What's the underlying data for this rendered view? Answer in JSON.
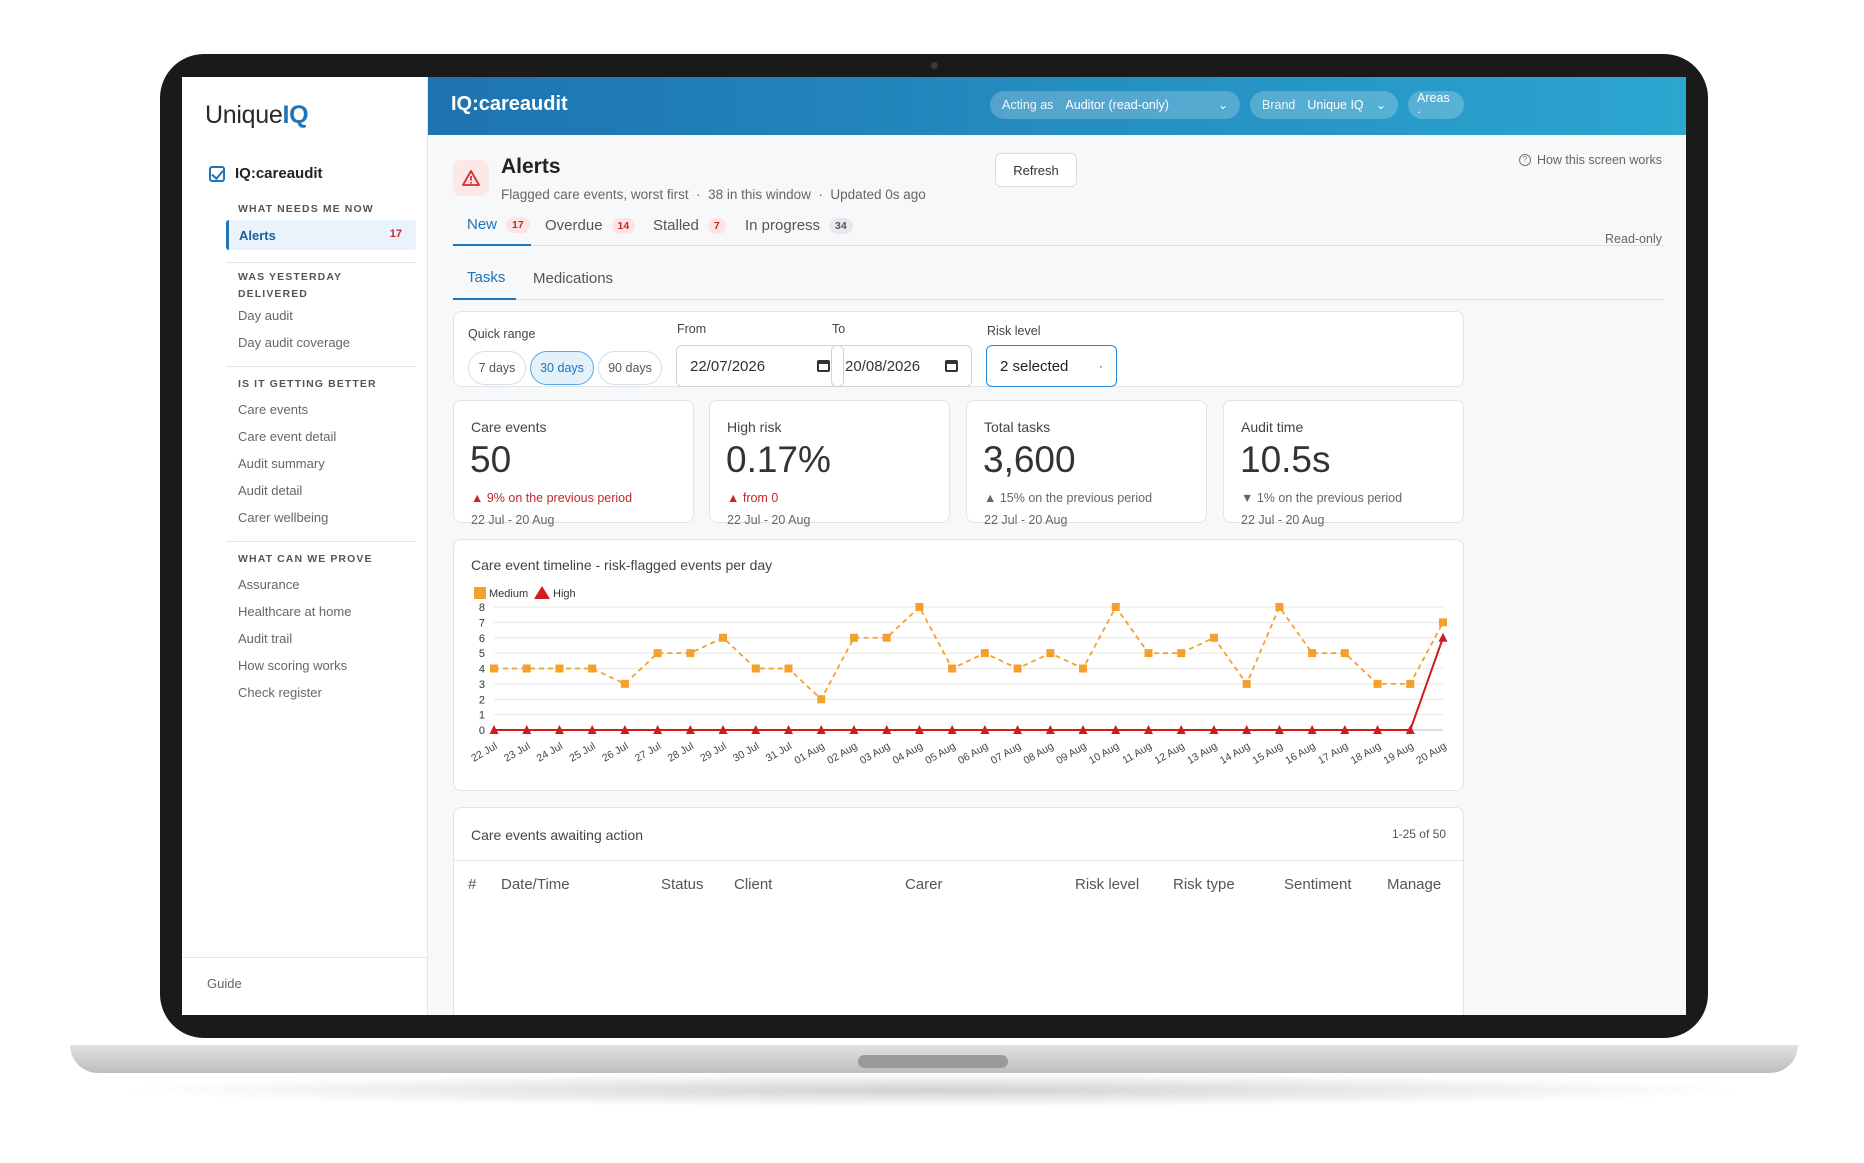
{
  "brand": {
    "logo_prefix": "Unique",
    "logo_suffix": "IQ"
  },
  "sidebar": {
    "app_name": "IQ:careaudit",
    "sections": {
      "now": "WHAT NEEDS ME NOW",
      "yesterday_1": "WAS YESTERDAY",
      "yesterday_2": "DELIVERED",
      "better": "IS IT GETTING BETTER",
      "prove": "WHAT CAN WE PROVE"
    },
    "active": {
      "label": "Alerts",
      "count": "17"
    },
    "items": {
      "day_audit": "Day audit",
      "day_audit_coverage": "Day audit coverage",
      "care_events": "Care events",
      "care_event_detail": "Care event detail",
      "audit_summary": "Audit summary",
      "audit_detail": "Audit detail",
      "carer_wellbeing": "Carer wellbeing",
      "assurance": "Assurance",
      "healthcare_at_home": "Healthcare at home",
      "audit_trail": "Audit trail",
      "how_scoring_works": "How scoring works",
      "check_register": "Check register"
    },
    "guide": "Guide"
  },
  "topbar": {
    "title": "IQ:careaudit",
    "acting_as_key": "Acting as",
    "acting_as_value": "Auditor (read-only)",
    "brand_key": "Brand",
    "brand_value": "Unique IQ",
    "areas": "Areas ·"
  },
  "header": {
    "title": "Alerts",
    "subtitle": "Flagged care events, worst first",
    "window_count": "38 in this window",
    "updated": "Updated 0s ago",
    "refresh": "Refresh",
    "how_this_works": "How this screen works",
    "read_only": "Read-only"
  },
  "tabs": [
    {
      "label": "New",
      "count": "17"
    },
    {
      "label": "Overdue",
      "count": "14"
    },
    {
      "label": "Stalled",
      "count": "7"
    },
    {
      "label": "In progress",
      "count": "34"
    }
  ],
  "subtabs": [
    "Tasks",
    "Medications"
  ],
  "filters": {
    "quick_range_label": "Quick range",
    "ranges": [
      "7 days",
      "30 days",
      "90 days"
    ],
    "selected_range": "30 days",
    "from_label": "From",
    "from_value": "22/07/2026",
    "to_label": "To",
    "to_value": "20/08/2026",
    "risk_label": "Risk level",
    "risk_value": "2 selected"
  },
  "kpis": [
    {
      "label": "Care events",
      "value": "50",
      "delta": "▲ 9% on the previous period",
      "date": "22 Jul - 20 Aug",
      "tone": "red"
    },
    {
      "label": "High risk",
      "value": "0.17%",
      "delta": "▲ from 0",
      "date": "22 Jul - 20 Aug",
      "tone": "red"
    },
    {
      "label": "Total tasks",
      "value": "3,600",
      "delta": "▲ 15% on the previous period",
      "date": "22 Jul - 20 Aug",
      "tone": "grey"
    },
    {
      "label": "Audit time",
      "value": "10.5s",
      "delta": "▼ 1% on the previous period",
      "date": "22 Jul - 20 Aug",
      "tone": "grey"
    }
  ],
  "chart_title": "Care event timeline - risk-flagged events per day",
  "chart_data": {
    "type": "line",
    "categories": [
      "22 Jul",
      "23 Jul",
      "24 Jul",
      "25 Jul",
      "26 Jul",
      "27 Jul",
      "28 Jul",
      "29 Jul",
      "30 Jul",
      "31 Jul",
      "01 Aug",
      "02 Aug",
      "03 Aug",
      "04 Aug",
      "05 Aug",
      "06 Aug",
      "07 Aug",
      "08 Aug",
      "09 Aug",
      "10 Aug",
      "11 Aug",
      "12 Aug",
      "13 Aug",
      "14 Aug",
      "15 Aug",
      "16 Aug",
      "17 Aug",
      "18 Aug",
      "19 Aug",
      "20 Aug"
    ],
    "series": [
      {
        "name": "Medium",
        "color": "#f5a02a",
        "marker": "square",
        "values": [
          4,
          4,
          4,
          4,
          3,
          5,
          5,
          6,
          4,
          4,
          2,
          6,
          6,
          8,
          4,
          5,
          4,
          5,
          4,
          8,
          5,
          5,
          6,
          3,
          8,
          5,
          5,
          3,
          3,
          7
        ]
      },
      {
        "name": "High",
        "color": "#d01c1c",
        "marker": "triangle",
        "values": [
          0,
          0,
          0,
          0,
          0,
          0,
          0,
          0,
          0,
          0,
          0,
          0,
          0,
          0,
          0,
          0,
          0,
          0,
          0,
          0,
          0,
          0,
          0,
          0,
          0,
          0,
          0,
          0,
          0,
          6
        ]
      }
    ],
    "ylim": [
      0,
      8
    ],
    "yticks": [
      0,
      1,
      2,
      3,
      4,
      5,
      6,
      7,
      8
    ],
    "grid": true,
    "legend": "top-left"
  },
  "table": {
    "title": "Care events awaiting action",
    "count": "1-25 of 50",
    "columns": [
      "#",
      "Date/Time",
      "Status",
      "Client",
      "Carer",
      "Risk level",
      "Risk type",
      "Sentiment",
      "Manage"
    ]
  }
}
